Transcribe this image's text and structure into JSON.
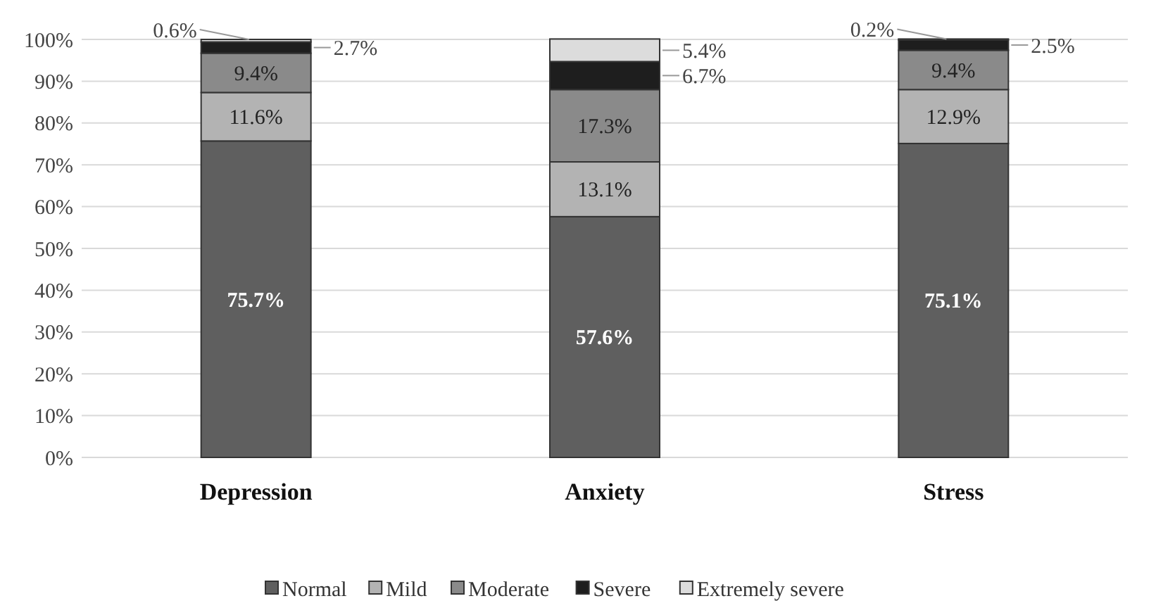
{
  "chart_data": {
    "type": "bar",
    "stacked": true,
    "categories": [
      "Depression",
      "Anxiety",
      "Stress"
    ],
    "series": [
      {
        "name": "Normal",
        "color": "#5f5f5f",
        "values": [
          75.7,
          57.6,
          75.1
        ],
        "value_labels": [
          "75.7%",
          "57.6%",
          "75.1%"
        ]
      },
      {
        "name": "Mild",
        "color": "#b3b3b3",
        "values": [
          11.6,
          13.1,
          12.9
        ],
        "value_labels": [
          "11.6%",
          "13.1%",
          "12.9%"
        ]
      },
      {
        "name": "Moderate",
        "color": "#8a8a8a",
        "values": [
          9.4,
          17.3,
          9.4
        ],
        "value_labels": [
          "9.4%",
          "17.3%",
          "9.4%"
        ]
      },
      {
        "name": "Severe",
        "color": "#1e1e1e",
        "values": [
          2.7,
          6.7,
          2.5
        ],
        "value_labels": [
          "2.7%",
          "6.7%",
          "2.5%"
        ]
      },
      {
        "name": "Extremely severe",
        "color": "#dcdcdc",
        "values": [
          0.6,
          5.4,
          0.2
        ],
        "value_labels": [
          "0.6%",
          "5.4%",
          "0.2%"
        ]
      }
    ],
    "ylim": [
      0,
      100
    ],
    "yticks": [
      {
        "value": 0,
        "label": "0%"
      },
      {
        "value": 10,
        "label": "10%"
      },
      {
        "value": 20,
        "label": "20%"
      },
      {
        "value": 30,
        "label": "30%"
      },
      {
        "value": 40,
        "label": "40%"
      },
      {
        "value": 50,
        "label": "50%"
      },
      {
        "value": 60,
        "label": "60%"
      },
      {
        "value": 70,
        "label": "70%"
      },
      {
        "value": 80,
        "label": "80%"
      },
      {
        "value": 90,
        "label": "90%"
      },
      {
        "value": 100,
        "label": "100%"
      }
    ],
    "grid": "y",
    "legend": "bottom"
  }
}
